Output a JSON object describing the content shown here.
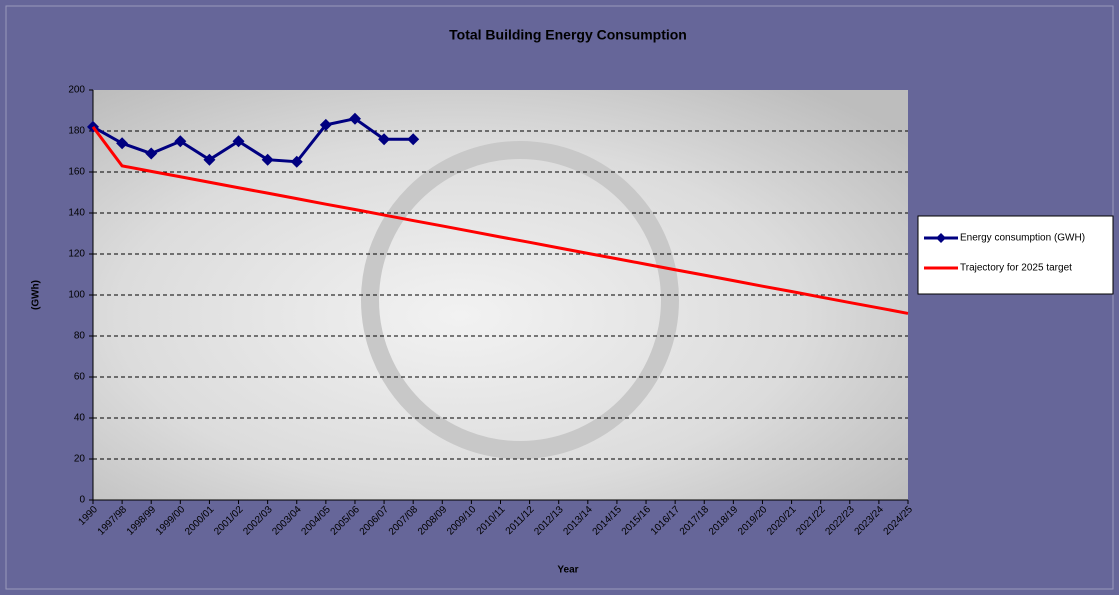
{
  "chart_data": {
    "type": "line",
    "title": "Total Building Energy Consumption",
    "x_label": "Year",
    "y_label": "(GWh)",
    "categories": [
      "1990",
      "1997/98",
      "1998/99",
      "1999/00",
      "2000/01",
      "2001/02",
      "2002/03",
      "2003/04",
      "2004/05",
      "2005/06",
      "2006/07",
      "2007/08",
      "2008/09",
      "2009/10",
      "2010/11",
      "2011/12",
      "2012/13",
      "2013/14",
      "2014/15",
      "2015/16",
      "1016/17",
      "2017/18",
      "2018/19",
      "2019/20",
      "2020/21",
      "2021/22",
      "2022/23",
      "2023/24",
      "2024/25"
    ],
    "series": [
      {
        "name": "Energy consumption (GWH)",
        "color": "#000080",
        "marker": "diamond",
        "values": [
          182,
          174,
          169,
          175,
          166,
          175,
          166,
          165,
          183,
          186,
          176,
          176,
          null,
          null,
          null,
          null,
          null,
          null,
          null,
          null,
          null,
          null,
          null,
          null,
          null,
          null,
          null,
          null,
          null
        ]
      },
      {
        "name": "Trajectory for 2025 target",
        "color": "#ff0000",
        "marker": "none",
        "values": [
          182,
          163,
          160.3,
          157.7,
          155,
          152.3,
          149.7,
          147,
          144.3,
          141.7,
          139,
          136.3,
          133.7,
          131,
          128.3,
          125.7,
          123,
          120.3,
          117.7,
          115,
          112.3,
          109.7,
          107,
          104.3,
          101.7,
          99,
          96.3,
          93.7,
          91
        ]
      }
    ],
    "ylim": [
      0,
      200
    ],
    "yticks": [
      0,
      20,
      40,
      60,
      80,
      100,
      120,
      140,
      160,
      180,
      200
    ],
    "grid": true,
    "legend": "right"
  }
}
